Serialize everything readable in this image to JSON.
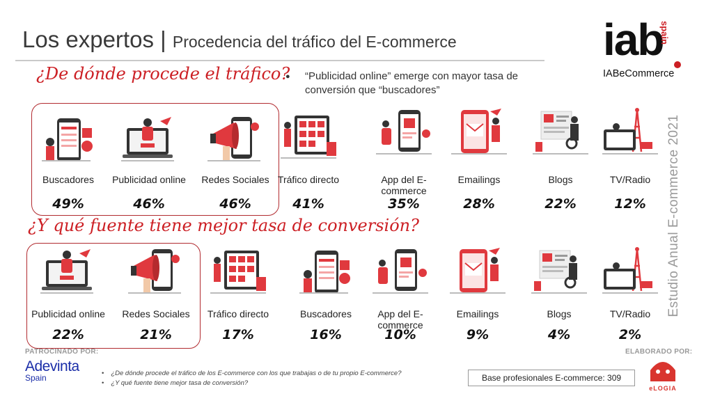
{
  "header": {
    "title": "Los expertos",
    "separator": "|",
    "subtitle": "Procedencia del tráfico del E-commerce"
  },
  "logo": {
    "brand": "iab",
    "country": "spain",
    "tag": "IABeCommerce"
  },
  "question1": "¿De dónde procede el tráfico?",
  "question2": "¿Y qué fuente tiene mejor tasa de conversión?",
  "bullet": {
    "mark": "●",
    "text": "“Publicidad online” emerge con mayor tasa de conversión que “buscadores”"
  },
  "row1": [
    {
      "label": "Buscadores",
      "value": "49%",
      "icon": "search-phone-illustration"
    },
    {
      "label": "Publicidad online",
      "value": "46%",
      "icon": "laptop-advertising-illustration"
    },
    {
      "label": "Redes Sociales",
      "value": "46%",
      "icon": "megaphone-phone-illustration"
    },
    {
      "label": "Tráfico directo",
      "value": "41%",
      "icon": "shop-screen-illustration"
    },
    {
      "label": "App del E-commerce",
      "value": "35%",
      "icon": "mobile-app-illustration"
    },
    {
      "label": "Emailings",
      "value": "28%",
      "icon": "email-phone-illustration"
    },
    {
      "label": "Blogs",
      "value": "22%",
      "icon": "blog-board-illustration"
    },
    {
      "label": "TV/Radio",
      "value": "12%",
      "icon": "tv-radio-illustration"
    }
  ],
  "row2": [
    {
      "label": "Publicidad online",
      "value": "22%",
      "icon": "laptop-advertising-illustration"
    },
    {
      "label": "Redes Sociales",
      "value": "21%",
      "icon": "megaphone-phone-illustration"
    },
    {
      "label": "Tráfico directo",
      "value": "17%",
      "icon": "shop-screen-illustration"
    },
    {
      "label": "Buscadores",
      "value": "16%",
      "icon": "search-phone-illustration"
    },
    {
      "label": "App del E-commerce",
      "value": "10%",
      "icon": "mobile-app-illustration"
    },
    {
      "label": "Emailings",
      "value": "9%",
      "icon": "email-phone-illustration"
    },
    {
      "label": "Blogs",
      "value": "4%",
      "icon": "blog-board-illustration"
    },
    {
      "label": "TV/Radio",
      "value": "2%",
      "icon": "tv-radio-illustration"
    }
  ],
  "side_text": "Estudio Anual E-commerce 2021",
  "sponsor": {
    "label": "PATROCINADO POR:",
    "name": "Adevinta",
    "country": "Spain"
  },
  "made_by": {
    "label": "ELABORADO POR:",
    "name": "eLOGIA"
  },
  "footnotes": [
    "¿De dónde procede el tráfico de los E-commerce con los que trabajas o de tu propio E-commerce?",
    "¿Y qué fuente tiene mejor tasa de conversión?"
  ],
  "base": "Base profesionales E-commerce: 309",
  "colors": {
    "accent": "#cc1f24",
    "dark": "#2b2b2b",
    "grey": "#9a9a9a"
  }
}
